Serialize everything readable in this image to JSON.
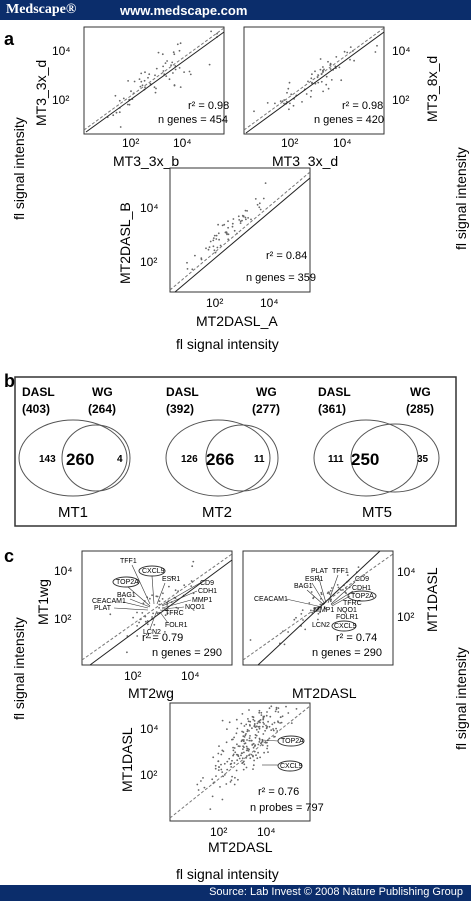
{
  "header": {
    "brand": "Medscape®",
    "url": "www.medscape.com"
  },
  "footer": {
    "source": "Source: Lab Invest © 2008 Nature Publishing Group"
  },
  "panel_a": {
    "label": "a",
    "shared_ylabel": "fl signal intensity",
    "shared_xlabel": "fl signal intensity",
    "right_ylabel": "fl signal intensity",
    "plots": [
      {
        "ylabel": "MT3_3x_d",
        "xlabel": "MT3_3x_b",
        "r2": "r² = 0.98",
        "n": "n genes = 454",
        "ticks": [
          "10²",
          "10⁴"
        ]
      },
      {
        "ylabel": "MT3_8x_d",
        "xlabel": "MT3_3x_d",
        "r2": "r² = 0.98",
        "n": "n genes = 420",
        "ticks": [
          "10²",
          "10⁴"
        ]
      },
      {
        "ylabel": "MT2DASL_B",
        "xlabel": "MT2DASL_A",
        "r2": "r² = 0.84",
        "n": "n genes = 359",
        "ticks": [
          "10²",
          "10⁴"
        ]
      }
    ]
  },
  "panel_b": {
    "label": "b",
    "venns": [
      {
        "left": "DASL",
        "left_n": "(403)",
        "right": "WG",
        "right_n": "(264)",
        "only_left": "143",
        "overlap": "260",
        "only_right": "4",
        "title": "MT1"
      },
      {
        "left": "DASL",
        "left_n": "(392)",
        "right": "WG",
        "right_n": "(277)",
        "only_left": "126",
        "overlap": "266",
        "only_right": "11",
        "title": "MT2"
      },
      {
        "left": "DASL",
        "left_n": "(361)",
        "right": "WG",
        "right_n": "(285)",
        "only_left": "111",
        "overlap": "250",
        "only_right": "35",
        "title": "MT5"
      }
    ]
  },
  "panel_c": {
    "label": "c",
    "shared_ylabel": "fl signal intensity",
    "right_ylabel": "fl signal intensity",
    "shared_xlabel": "fl signal intensity",
    "plots": [
      {
        "ylabel": "MT1wg",
        "xlabel": "MT2wg",
        "r2": "r² = 0.79",
        "n": "n genes = 290",
        "genes": [
          "TFF1",
          "CXCL9",
          "TOP2A",
          "ESR1",
          "BAG1",
          "CEACAM1",
          "PLAT",
          "LCN2",
          "FOLR1",
          "CD9",
          "CDH1",
          "MMP1",
          "NQO1",
          "TFRC"
        ]
      },
      {
        "ylabel": "MT1DASL",
        "xlabel": "MT2DASL",
        "r2": "r² = 0.74",
        "n": "n genes = 290",
        "genes": [
          "PLAT",
          "TFF1",
          "ESR1",
          "BAG1",
          "CEACAM1",
          "CD9",
          "CDH1",
          "TOP2A",
          "TFRC",
          "NQO1",
          "MMP1",
          "FOLR1",
          "LCN2",
          "CXCL9"
        ]
      },
      {
        "ylabel": "MT1DASL",
        "xlabel": "MT2DASL",
        "r2": "r² = 0.76",
        "n": "n probes = 797",
        "genes": [
          "TOP2A",
          "CXCL9"
        ]
      }
    ]
  }
}
